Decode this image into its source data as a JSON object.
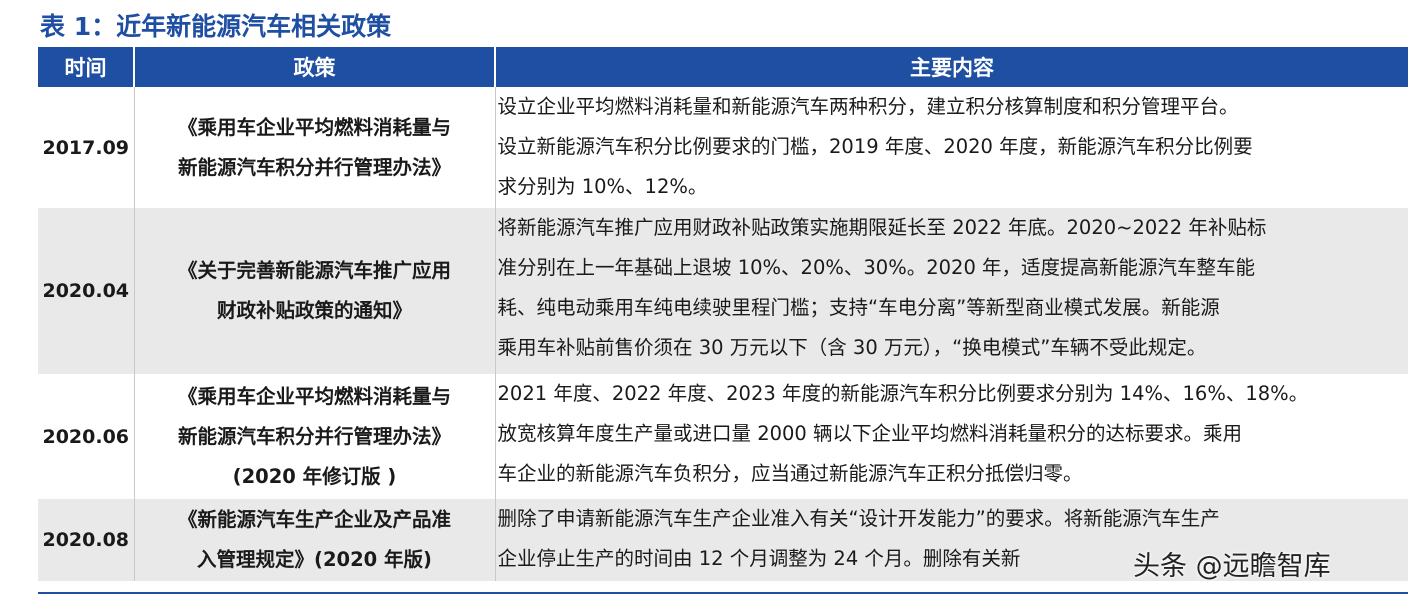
{
  "title": "表 1：近年新能源汽车相关政策",
  "headers": [
    "时间",
    "政策",
    "主要内容"
  ],
  "rows": [
    {
      "time": "2017.09",
      "policy_lines": [
        "《乘用车企业平均燃料消耗量与",
        "新能源汽车积分并行管理办法》"
      ],
      "content_lines": [
        "设立企业平均燃料消耗量和新能源汽车两种积分，建立积分核算制度和积分管理平台。",
        "设立新能源汽车积分比例要求的门槛，2019 年度、2020 年度，新能源汽车积分比例要",
        "求分别为 10%、12%。"
      ]
    },
    {
      "time": "2020.04",
      "policy_lines": [
        "《关于完善新能源汽车推广应用",
        "财政补贴政策的通知》"
      ],
      "content_lines": [
        "将新能源汽车推广应用财政补贴政策实施期限延长至 2022 年底。2020~2022 年补贴标",
        "准分别在上一年基础上退坡 10%、20%、30%。2020 年，适度提高新能源汽车整车能",
        "耗、纯电动乘用车纯电续驶里程门槛；支持“车电分离”等新型商业模式发展。新能源",
        "乘用车补贴前售价须在 30 万元以下（含 30 万元），“换电模式”车辆不受此规定。"
      ]
    },
    {
      "time": "2020.06",
      "policy_lines": [
        "《乘用车企业平均燃料消耗量与",
        "新能源汽车积分并行管理办法》",
        "(2020 年修订版 )"
      ],
      "content_lines": [
        "2021 年度、2022 年度、2023 年度的新能源汽车积分比例要求分别为 14%、16%、18%。",
        "放宽核算年度生产量或进口量 2000 辆以下企业平均燃料消耗量积分的达标要求。乘用",
        "车企业的新能源汽车负积分，应当通过新能源汽车正积分抵偿归零。"
      ]
    },
    {
      "time": "2020.08",
      "policy_lines": [
        "《新能源汽车生产企业及产品准",
        "入管理规定》(2020 年版)"
      ],
      "content_lines": [
        "删除了申请新能源汽车生产企业准入有关“设计开发能力”的要求。将新能源汽车生产",
        "企业停止生产的时间由 12 个月调整为 24 个月。删除有关新"
      ]
    }
  ],
  "watermark": "头条 @远瞻智库"
}
